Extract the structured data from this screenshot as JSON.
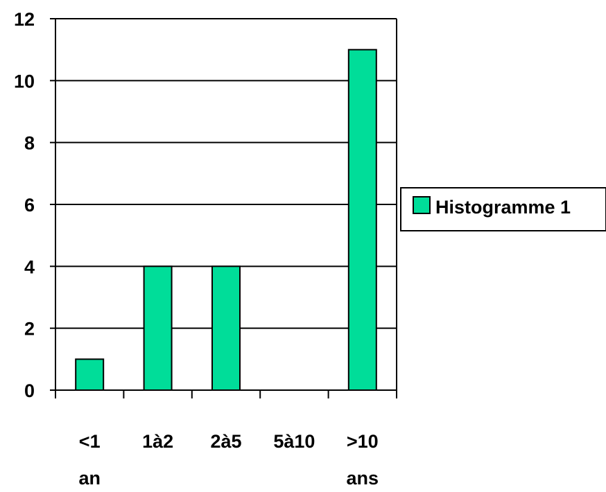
{
  "chart_data": {
    "type": "bar",
    "categories": [
      [
        "<1",
        "an"
      ],
      [
        "1à2"
      ],
      [
        "2à5"
      ],
      [
        "5à10"
      ],
      [
        ">10",
        "ans"
      ]
    ],
    "series": [
      {
        "name": "Histogramme 1",
        "values": [
          1,
          4,
          4,
          0,
          11
        ],
        "color": "#00dd99"
      }
    ],
    "ylim": [
      0,
      12
    ],
    "yticks": [
      0,
      2,
      4,
      6,
      8,
      10,
      12
    ],
    "grid": true,
    "legend": "right"
  }
}
